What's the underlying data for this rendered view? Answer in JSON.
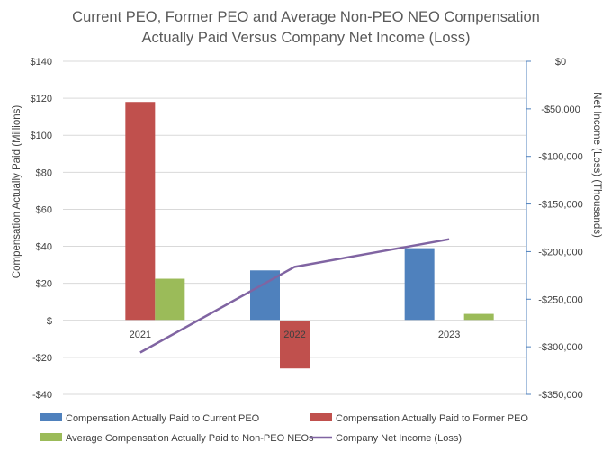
{
  "chart_data": {
    "type": "bar+line",
    "title_lines": [
      "Current PEO, Former PEO and Average Non-PEO NEO Compensation",
      "Actually Paid Versus Company Net Income (Loss)"
    ],
    "categories": [
      "2021",
      "2022",
      "2023"
    ],
    "ylabel": "Compensation Actually Paid (Millions)",
    "y2label": "Net Income (Loss) (Thousands)",
    "ylim": [
      -40,
      140
    ],
    "yticks": [
      -40,
      -20,
      0,
      20,
      40,
      60,
      80,
      100,
      120,
      140
    ],
    "ytick_labels": [
      "-$40",
      "-$20",
      "$",
      "$20",
      "$40",
      "$60",
      "$80",
      "$100",
      "$120",
      "$140"
    ],
    "y2lim": [
      -350000,
      0
    ],
    "y2ticks": [
      -350000,
      -300000,
      -250000,
      -200000,
      -150000,
      -100000,
      -50000,
      0
    ],
    "y2tick_labels": [
      "-$350,000",
      "-$300,000",
      "-$250,000",
      "-$200,000",
      "-$150,000",
      "-$100,000",
      "-$50,000",
      "$0"
    ],
    "grid": true,
    "series": [
      {
        "name": "Compensation Actually Paid to Current PEO",
        "kind": "bar",
        "axis": "left",
        "color": "#4f81bd",
        "values": [
          0,
          27,
          39
        ]
      },
      {
        "name": "Compensation Actually Paid to Former PEO",
        "kind": "bar",
        "axis": "left",
        "color": "#c0504d",
        "values": [
          118,
          -26,
          0
        ]
      },
      {
        "name": "Average Compensation Actually Paid to Non-PEO NEOs",
        "kind": "bar",
        "axis": "left",
        "color": "#9bbb59",
        "values": [
          22.5,
          0,
          3.5
        ]
      },
      {
        "name": "Company Net Income (Loss)",
        "kind": "line",
        "axis": "right",
        "color": "#8064a2",
        "values": [
          -306000,
          -216000,
          -187000
        ]
      }
    ],
    "legend_position": "bottom"
  }
}
